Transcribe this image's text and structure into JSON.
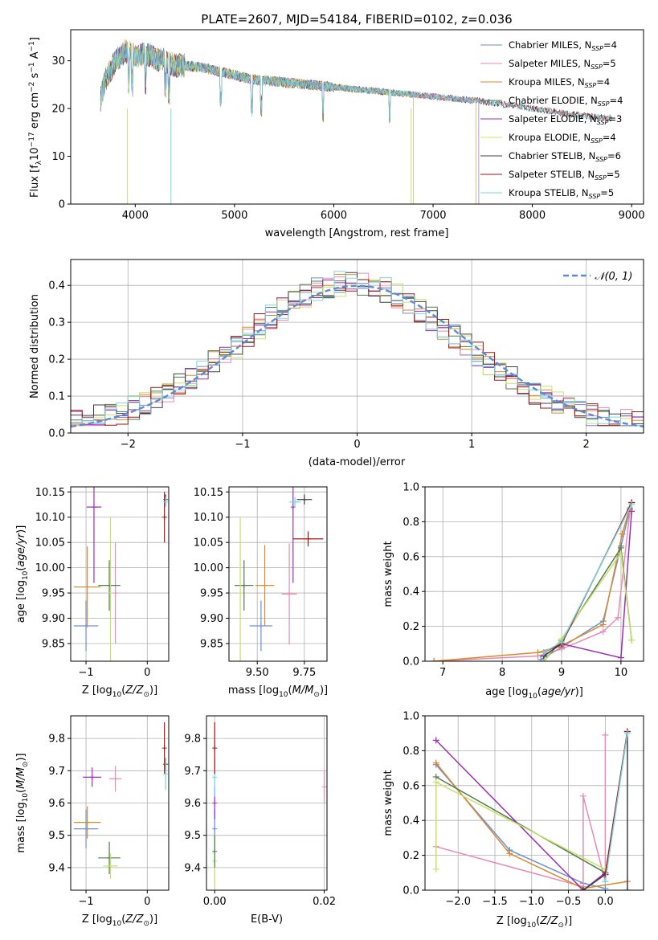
{
  "colors": {
    "Chabrier MILES": "#6a8fd6",
    "Salpeter MILES": "#e88ab5",
    "Kroupa MILES": "#d98a2e",
    "Chabrier ELODIE": "#4f7d4f",
    "Salpeter ELODIE": "#9a2fb3",
    "Kroupa ELODIE": "#c8e06a",
    "Chabrier STELIB": "#404040",
    "Salpeter STELIB": "#a01515",
    "Kroupa STELIB": "#7bd6e0",
    "gauss": "#5b8bd6"
  },
  "chart_data": [
    {
      "type": "line",
      "id": "spectrum",
      "title": "PLATE=2607, MJD=54184, FIBERID=0102, z=0.036",
      "xlabel": "wavelength [Angstrom, rest frame]",
      "ylabel": "Flux [f_λ 10^-17 erg cm^-2 s^-1 A^-1]",
      "xlim": [
        3350,
        9120
      ],
      "ylim": [
        0,
        36.5
      ],
      "xticks": [
        "4000",
        "5000",
        "6000",
        "7000",
        "8000",
        "9000"
      ],
      "yticks": [
        "0",
        "10",
        "20",
        "30"
      ],
      "grid": false,
      "legend_position": "top-right",
      "continuum": [
        [
          3650,
          22
        ],
        [
          3700,
          26
        ],
        [
          3800,
          30
        ],
        [
          3900,
          32
        ],
        [
          4000,
          31
        ],
        [
          4100,
          31.5
        ],
        [
          4200,
          30.5
        ],
        [
          4300,
          30
        ],
        [
          4400,
          29
        ],
        [
          4500,
          29
        ],
        [
          4700,
          28.5
        ],
        [
          5000,
          27
        ],
        [
          5200,
          26
        ],
        [
          5500,
          25.5
        ],
        [
          6000,
          24.5
        ],
        [
          6500,
          23.5
        ],
        [
          7000,
          22.5
        ],
        [
          7500,
          21.5
        ],
        [
          8000,
          20
        ],
        [
          8500,
          18.5
        ],
        [
          8800,
          18
        ]
      ],
      "series": [
        {
          "name": "Chabrier MILES, N_SSP=4",
          "label_main": "Chabrier MILES, N",
          "label_sub": "SSP",
          "label_tail": "=4",
          "x_end": 7460
        },
        {
          "name": "Salpeter MILES, N_SSP=5",
          "label_main": "Salpeter MILES, N",
          "label_sub": "SSP",
          "label_tail": "=5",
          "x_end": 7460
        },
        {
          "name": "Kroupa MILES, N_SSP=4",
          "label_main": "Kroupa MILES, N",
          "label_sub": "SSP",
          "label_tail": "=4",
          "x_end": 7430
        },
        {
          "name": "Chabrier ELODIE, N_SSP=4",
          "label_main": "Chabrier ELODIE, N",
          "label_sub": "SSP",
          "label_tail": "=4",
          "x_end": 6800
        },
        {
          "name": "Salpeter ELODIE, N_SSP=3",
          "label_main": "Salpeter ELODIE, N",
          "label_sub": "SSP",
          "label_tail": "=3",
          "x_end": 6800
        },
        {
          "name": "Kroupa ELODIE, N_SSP=4",
          "label_main": "Kroupa ELODIE, N",
          "label_sub": "SSP",
          "label_tail": "=4",
          "x_end": 6800
        },
        {
          "name": "Chabrier STELIB, N_SSP=6",
          "label_main": "Chabrier STELIB, N",
          "label_sub": "SSP",
          "label_tail": "=6",
          "x_end": 8800
        },
        {
          "name": "Salpeter STELIB, N_SSP=5",
          "label_main": "Salpeter STELIB, N",
          "label_sub": "SSP",
          "label_tail": "=5",
          "x_end": 8800
        },
        {
          "name": "Kroupa STELIB, N_SSP=5",
          "label_main": "Kroupa STELIB, N",
          "label_sub": "SSP",
          "label_tail": "=5",
          "x_end": 8800
        }
      ]
    },
    {
      "type": "line",
      "id": "residuals",
      "xlabel": "(data-model)/error",
      "ylabel": "Normed distribution",
      "xlim": [
        -2.5,
        2.5
      ],
      "ylim": [
        0,
        0.47
      ],
      "xticks": [
        "−2",
        "−1",
        "0",
        "1",
        "2"
      ],
      "yticks": [
        "0.0",
        "0.1",
        "0.2",
        "0.3",
        "0.4"
      ],
      "grid": true,
      "legend_position": "top-right",
      "gauss_label": "𝒩(0, 1)",
      "bin_width": 0.1
    },
    {
      "type": "scatter",
      "id": "Z_age",
      "xlabel": "Z [log10(Z/Z☉)]",
      "ylabel": "age [log10(age/yr)]",
      "xlim": [
        -1.25,
        0.35
      ],
      "ylim": [
        9.815,
        10.16
      ],
      "xticks": [
        "−1",
        "0"
      ],
      "yticks": [
        "9.85",
        "9.90",
        "9.95",
        "10.00",
        "10.05",
        "10.10",
        "10.15"
      ],
      "points": [
        {
          "s": "Chabrier MILES",
          "x": -1.0,
          "y": 9.885,
          "xe": 0.2,
          "ye": 0.05
        },
        {
          "s": "Salpeter MILES",
          "x": -0.52,
          "y": 9.95,
          "xe": 0.0,
          "ye": 0.1
        },
        {
          "s": "Kroupa MILES",
          "x": -0.98,
          "y": 9.962,
          "xe": 0.22,
          "ye": 0.08
        },
        {
          "s": "Chabrier ELODIE",
          "x": -0.62,
          "y": 9.965,
          "xe": 0.18,
          "ye": 0.05
        },
        {
          "s": "Salpeter ELODIE",
          "x": -0.87,
          "y": 10.12,
          "xe": 0.12,
          "ye": 0.15
        },
        {
          "s": "Kroupa ELODIE",
          "x": -0.6,
          "y": 9.95,
          "xe": 0.0,
          "ye": 0.15
        },
        {
          "s": "Chabrier STELIB",
          "x": 0.3,
          "y": 10.135,
          "xe": 0.0,
          "ye": 0.01
        },
        {
          "s": "Salpeter STELIB",
          "x": 0.28,
          "y": 10.1,
          "xe": 0.0,
          "ye": 0.05
        },
        {
          "s": "Kroupa STELIB",
          "x": 0.3,
          "y": 10.13,
          "xe": 0.0,
          "ye": 0.01
        }
      ]
    },
    {
      "type": "scatter",
      "id": "mass_age",
      "xlabel": "mass [log10(M/M☉)]",
      "ylabel": "",
      "xlim": [
        9.35,
        9.87
      ],
      "ylim": [
        9.815,
        10.16
      ],
      "xticks": [
        "9.50",
        "9.75"
      ],
      "yticks": [
        "9.85",
        "9.90",
        "9.95",
        "10.00",
        "10.05",
        "10.10",
        "10.15"
      ],
      "points": [
        {
          "s": "Chabrier MILES",
          "x": 9.52,
          "y": 9.885,
          "xe": 0.06,
          "ye": 0.05
        },
        {
          "s": "Salpeter MILES",
          "x": 9.67,
          "y": 9.948,
          "xe": 0.04,
          "ye": 0.1
        },
        {
          "s": "Kroupa MILES",
          "x": 9.54,
          "y": 9.965,
          "xe": 0.05,
          "ye": 0.08
        },
        {
          "s": "Chabrier ELODIE",
          "x": 9.43,
          "y": 9.965,
          "xe": 0.05,
          "ye": 0.05
        },
        {
          "s": "Salpeter ELODIE",
          "x": 9.69,
          "y": 10.12,
          "xe": 0.0,
          "ye": 0.15
        },
        {
          "s": "Kroupa ELODIE",
          "x": 9.41,
          "y": 9.95,
          "xe": 0.0,
          "ye": 0.15
        },
        {
          "s": "Chabrier STELIB",
          "x": 9.75,
          "y": 10.135,
          "xe": 0.04,
          "ye": 0.01
        },
        {
          "s": "Salpeter STELIB",
          "x": 9.77,
          "y": 10.057,
          "xe": 0.08,
          "ye": 0.015
        },
        {
          "s": "Kroupa STELIB",
          "x": 9.7,
          "y": 10.13,
          "xe": 0.03,
          "ye": 0.01
        }
      ]
    },
    {
      "type": "line",
      "id": "age_weight",
      "xlabel": "age [log10(age/yr)]",
      "ylabel": "mass weight",
      "xlim": [
        6.7,
        10.38
      ],
      "ylim": [
        0,
        1.0
      ],
      "xticks": [
        "7",
        "8",
        "9",
        "10"
      ],
      "yticks": [
        "0.0",
        "0.2",
        "0.4",
        "0.6",
        "0.8",
        "1.0"
      ],
      "series": [
        {
          "s": "Chabrier MILES",
          "pts": [
            [
              8.65,
              0.01
            ],
            [
              9.0,
              0.08
            ],
            [
              9.7,
              0.23
            ],
            [
              10.0,
              0.66
            ],
            [
              10.15,
              0.87
            ]
          ]
        },
        {
          "s": "Salpeter MILES",
          "pts": [
            [
              6.85,
              0.0
            ],
            [
              8.6,
              0.03
            ],
            [
              9.0,
              0.07
            ],
            [
              9.7,
              0.17
            ],
            [
              9.95,
              0.25
            ],
            [
              10.15,
              0.86
            ]
          ]
        },
        {
          "s": "Kroupa MILES",
          "pts": [
            [
              6.85,
              0.0
            ],
            [
              8.6,
              0.05
            ],
            [
              9.0,
              0.09
            ],
            [
              9.7,
              0.21
            ],
            [
              10.02,
              0.73
            ],
            [
              10.15,
              0.88
            ]
          ]
        },
        {
          "s": "Chabrier ELODIE",
          "pts": [
            [
              8.7,
              0.0
            ],
            [
              9.0,
              0.12
            ],
            [
              10.0,
              0.65
            ],
            [
              10.18,
              0.12
            ]
          ]
        },
        {
          "s": "Salpeter ELODIE",
          "pts": [
            [
              8.7,
              0.03
            ],
            [
              9.0,
              0.1
            ],
            [
              10.0,
              0.02
            ],
            [
              10.18,
              0.86
            ]
          ]
        },
        {
          "s": "Kroupa ELODIE",
          "pts": [
            [
              8.7,
              0.0
            ],
            [
              9.0,
              0.13
            ],
            [
              10.0,
              0.62
            ],
            [
              10.18,
              0.12
            ]
          ]
        },
        {
          "s": "Chabrier STELIB",
          "pts": [
            [
              8.7,
              0.03
            ],
            [
              9.0,
              0.1
            ],
            [
              10.18,
              0.91
            ]
          ]
        },
        {
          "s": "Salpeter STELIB",
          "pts": [
            [
              8.7,
              0.05
            ],
            [
              9.0,
              0.1
            ],
            [
              10.18,
              0.91
            ]
          ]
        },
        {
          "s": "Kroupa STELIB",
          "pts": [
            [
              8.7,
              0.05
            ],
            [
              9.0,
              0.11
            ],
            [
              10.18,
              0.9
            ]
          ]
        }
      ]
    },
    {
      "type": "scatter",
      "id": "Z_mass",
      "xlabel": "Z [log10(Z/Z☉)]",
      "ylabel": "mass [log10(M/M☉)]",
      "xlim": [
        -1.25,
        0.35
      ],
      "ylim": [
        9.33,
        9.87
      ],
      "xticks": [
        "−1",
        "0"
      ],
      "yticks": [
        "9.4",
        "9.5",
        "9.6",
        "9.7",
        "9.8"
      ],
      "points": [
        {
          "s": "Chabrier MILES",
          "x": -1.0,
          "y": 9.52,
          "xe": 0.2,
          "ye": 0.06
        },
        {
          "s": "Salpeter MILES",
          "x": -0.52,
          "y": 9.675,
          "xe": 0.1,
          "ye": 0.04
        },
        {
          "s": "Kroupa MILES",
          "x": -0.98,
          "y": 9.54,
          "xe": 0.22,
          "ye": 0.05
        },
        {
          "s": "Chabrier ELODIE",
          "x": -0.62,
          "y": 9.43,
          "xe": 0.18,
          "ye": 0.05
        },
        {
          "s": "Salpeter ELODIE",
          "x": -0.9,
          "y": 9.68,
          "xe": 0.15,
          "ye": 0.03
        },
        {
          "s": "Kroupa ELODIE",
          "x": -0.6,
          "y": 9.405,
          "xe": 0.12,
          "ye": 0.04
        },
        {
          "s": "Chabrier STELIB",
          "x": 0.3,
          "y": 9.72,
          "xe": 0.0,
          "ye": 0.02
        },
        {
          "s": "Salpeter STELIB",
          "x": 0.28,
          "y": 9.77,
          "xe": 0.0,
          "ye": 0.08
        },
        {
          "s": "Kroupa STELIB",
          "x": 0.3,
          "y": 9.69,
          "xe": 0.0,
          "ye": 0.05
        }
      ]
    },
    {
      "type": "scatter",
      "id": "ebv_mass",
      "xlabel": "E(B-V)",
      "ylabel": "",
      "xlim": [
        -0.0015,
        0.0205
      ],
      "ylim": [
        9.33,
        9.87
      ],
      "xticks": [
        "0.00",
        "0.02"
      ],
      "yticks": [
        "9.4",
        "9.5",
        "9.6",
        "9.7",
        "9.8"
      ],
      "points": [
        {
          "s": "Chabrier MILES",
          "x": 0.0,
          "y": 9.52,
          "xe": 0,
          "ye": 0.06
        },
        {
          "s": "Kroupa ELODIE",
          "x": 0.0,
          "y": 9.42,
          "xe": 0,
          "ye": 0.08
        },
        {
          "s": "Chabrier ELODIE",
          "x": 0.0,
          "y": 9.45,
          "xe": 0,
          "ye": 0.05
        },
        {
          "s": "Salpeter ELODIE",
          "x": 0.0,
          "y": 9.6,
          "xe": 0,
          "ye": 0.05
        },
        {
          "s": "Kroupa STELIB",
          "x": 0.0,
          "y": 9.68,
          "xe": 0,
          "ye": 0.06
        },
        {
          "s": "Salpeter STELIB",
          "x": 0.0,
          "y": 9.77,
          "xe": 0,
          "ye": 0.08
        },
        {
          "s": "Salpeter MILES",
          "x": 0.02,
          "y": 9.65,
          "xe": 0,
          "ye": 0.05
        }
      ]
    },
    {
      "type": "line",
      "id": "Z_weight",
      "xlabel": "Z [log10(Z/Z☉)]",
      "ylabel": "mass weight",
      "xlim": [
        -2.45,
        0.52
      ],
      "ylim": [
        0,
        1.0
      ],
      "xticks": [
        "−2.0",
        "−1.5",
        "−1.0",
        "−0.5",
        "0.0"
      ],
      "yticks": [
        "0.0",
        "0.2",
        "0.4",
        "0.6",
        "0.8",
        "1.0"
      ],
      "series": [
        {
          "s": "Chabrier MILES",
          "pts": [
            [
              -2.3,
              0.72
            ],
            [
              -1.3,
              0.23
            ],
            [
              -0.3,
              0.04
            ],
            [
              0.0,
              0.01
            ]
          ]
        },
        {
          "s": "Salpeter MILES",
          "pts": [
            [
              -2.3,
              0.25
            ],
            [
              -0.3,
              0.02
            ],
            [
              -0.3,
              0.54
            ],
            [
              0.0,
              0.05
            ],
            [
              0.0,
              0.89
            ]
          ]
        },
        {
          "s": "Kroupa MILES",
          "pts": [
            [
              -2.3,
              0.73
            ],
            [
              -1.3,
              0.21
            ],
            [
              -0.3,
              0.01
            ],
            [
              0.3,
              0.05
            ]
          ]
        },
        {
          "s": "Chabrier ELODIE",
          "pts": [
            [
              -2.3,
              0.65
            ],
            [
              0.0,
              0.1
            ]
          ]
        },
        {
          "s": "Salpeter ELODIE",
          "pts": [
            [
              -2.3,
              0.86
            ],
            [
              -0.3,
              0.0
            ],
            [
              0.0,
              0.1
            ]
          ]
        },
        {
          "s": "Kroupa ELODIE",
          "pts": [
            [
              -2.3,
              0.12
            ],
            [
              -2.3,
              0.62
            ],
            [
              0.0,
              0.12
            ]
          ]
        },
        {
          "s": "Chabrier STELIB",
          "pts": [
            [
              -0.3,
              0.0
            ],
            [
              0.0,
              0.09
            ],
            [
              0.3,
              0.91
            ],
            [
              0.3,
              0.0
            ]
          ]
        },
        {
          "s": "Salpeter STELIB",
          "pts": [
            [
              0.0,
              0.09
            ],
            [
              0.3,
              0.91
            ]
          ]
        },
        {
          "s": "Kroupa STELIB",
          "pts": [
            [
              0.0,
              0.05
            ],
            [
              0.3,
              0.9
            ]
          ]
        }
      ]
    }
  ]
}
